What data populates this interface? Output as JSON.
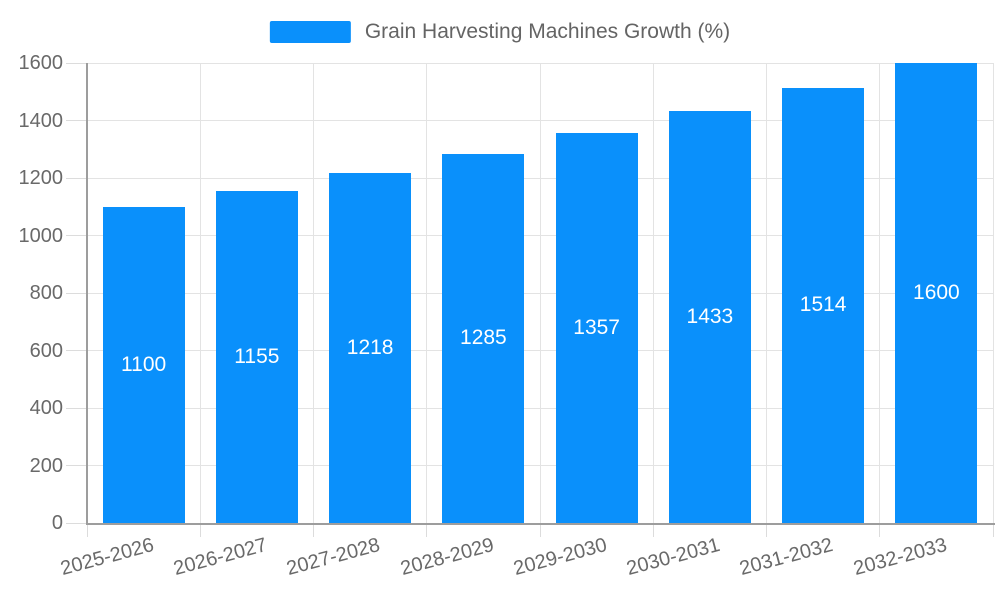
{
  "chart_data": {
    "type": "bar",
    "title": "",
    "legend": "Grain Harvesting Machines Growth (%)",
    "legend_position": "top-center",
    "categories": [
      "2025-2026",
      "2026-2027",
      "2027-2028",
      "2028-2029",
      "2029-2030",
      "2030-2031",
      "2031-2032",
      "2032-2033"
    ],
    "values": [
      1100,
      1155,
      1218,
      1285,
      1357,
      1433,
      1514,
      1600
    ],
    "value_labels": [
      "1100",
      "1155",
      "1218",
      "1285",
      "1357",
      "1433",
      "1514",
      "1600"
    ],
    "xlabel": "",
    "ylabel": "",
    "ylim": [
      0,
      1600
    ],
    "yticks": [
      0,
      200,
      400,
      600,
      800,
      1000,
      1200,
      1400,
      1600
    ],
    "grid": true,
    "x_label_rotation_deg": -15
  },
  "colors": {
    "bar": "#0a90fb",
    "bar_value_text": "#ffffff",
    "grid_line": "#e3e3e3",
    "axis_line": "#9d9d9d",
    "tick_mark": "#dcdcdc",
    "tick_text": "#696969",
    "legend_text": "#646464",
    "background": "#ffffff"
  }
}
